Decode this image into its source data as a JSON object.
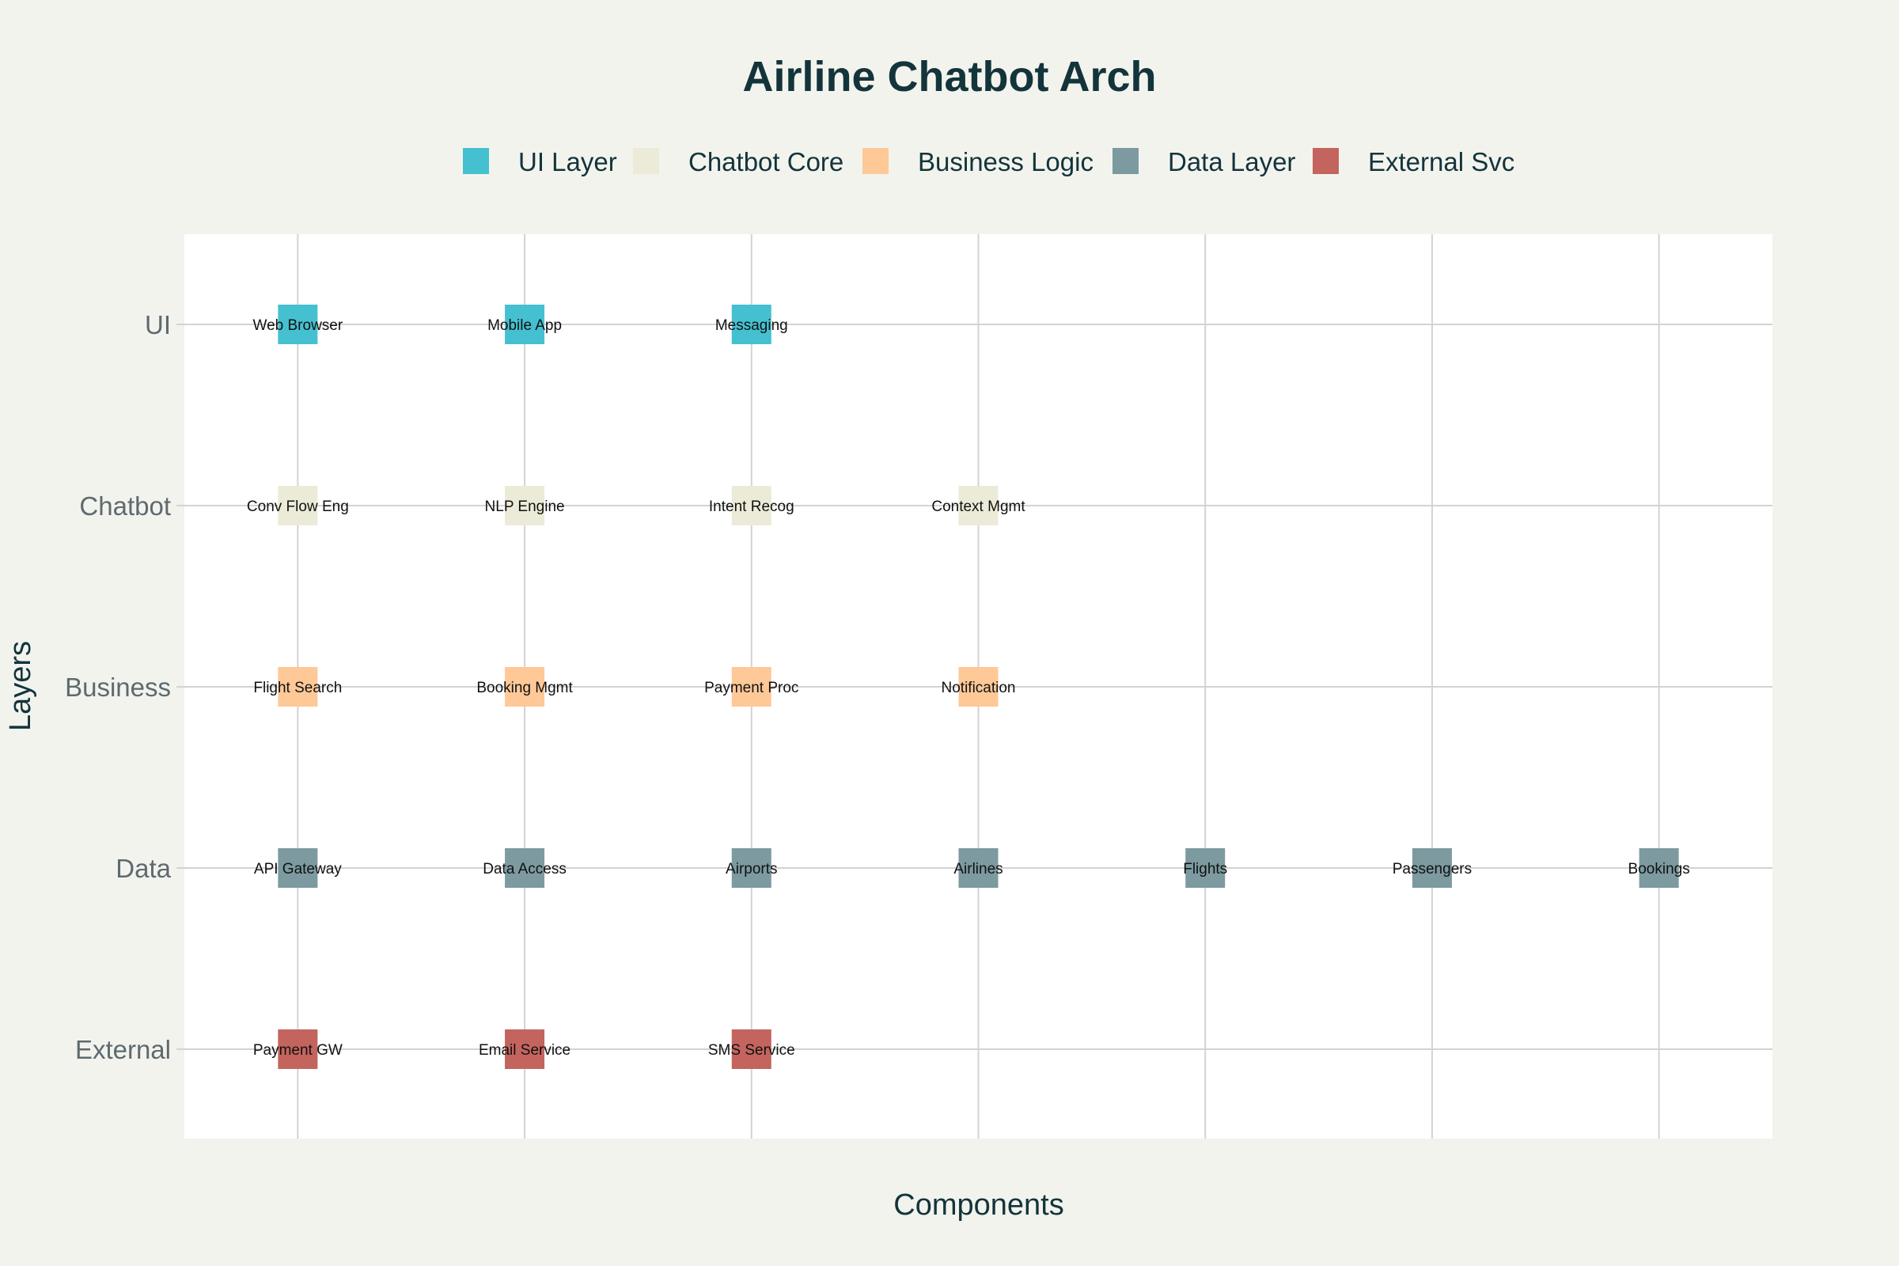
{
  "chart_data": {
    "type": "scatter",
    "title": "Airline Chatbot Arch",
    "xlabel": "Components",
    "ylabel": "Layers",
    "y_categories": [
      "UI",
      "Chatbot",
      "Business",
      "Data",
      "External"
    ],
    "x_range": [
      0.5,
      7.5
    ],
    "grid": true,
    "legend_position": "top-center",
    "series": [
      {
        "name": "UI Layer",
        "color": "#45c0d0",
        "points": [
          {
            "x": 1,
            "y": "UI",
            "label": "Web Browser"
          },
          {
            "x": 2,
            "y": "UI",
            "label": "Mobile App"
          },
          {
            "x": 3,
            "y": "UI",
            "label": "Messaging"
          }
        ]
      },
      {
        "name": "Chatbot Core",
        "color": "#ecebd8",
        "points": [
          {
            "x": 1,
            "y": "Chatbot",
            "label": "Conv Flow Eng"
          },
          {
            "x": 2,
            "y": "Chatbot",
            "label": "NLP Engine"
          },
          {
            "x": 3,
            "y": "Chatbot",
            "label": "Intent Recog"
          },
          {
            "x": 4,
            "y": "Chatbot",
            "label": "Context Mgmt"
          }
        ]
      },
      {
        "name": "Business Logic",
        "color": "#fec897",
        "points": [
          {
            "x": 1,
            "y": "Business",
            "label": "Flight Search"
          },
          {
            "x": 2,
            "y": "Business",
            "label": "Booking Mgmt"
          },
          {
            "x": 3,
            "y": "Business",
            "label": "Payment Proc"
          },
          {
            "x": 4,
            "y": "Business",
            "label": "Notification"
          }
        ]
      },
      {
        "name": "Data Layer",
        "color": "#7c9aa0",
        "points": [
          {
            "x": 1,
            "y": "Data",
            "label": "API Gateway"
          },
          {
            "x": 2,
            "y": "Data",
            "label": "Data Access"
          },
          {
            "x": 3,
            "y": "Data",
            "label": "Airports"
          },
          {
            "x": 4,
            "y": "Data",
            "label": "Airlines"
          },
          {
            "x": 5,
            "y": "Data",
            "label": "Flights"
          },
          {
            "x": 6,
            "y": "Data",
            "label": "Passengers"
          },
          {
            "x": 7,
            "y": "Data",
            "label": "Bookings"
          }
        ]
      },
      {
        "name": "External Svc",
        "color": "#c3645e",
        "points": [
          {
            "x": 1,
            "y": "External",
            "label": "Payment GW"
          },
          {
            "x": 2,
            "y": "External",
            "label": "Email Service"
          },
          {
            "x": 3,
            "y": "External",
            "label": "SMS Service"
          }
        ]
      }
    ]
  }
}
